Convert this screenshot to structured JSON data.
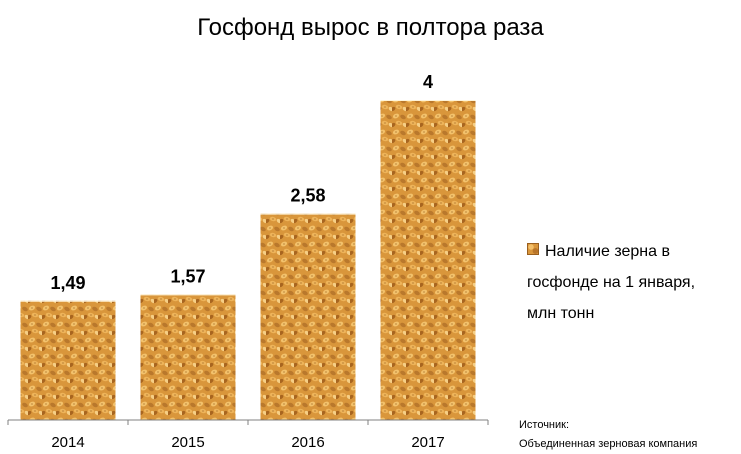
{
  "chart_data": {
    "type": "bar",
    "title": "Госфонд вырос в полтора раза",
    "categories": [
      "2014",
      "2015",
      "2016",
      "2017"
    ],
    "series": [
      {
        "name": "Наличие зерна в госфонде на 1 января, млн тонн",
        "values": [
          1.49,
          1.57,
          2.58,
          4
        ]
      }
    ],
    "data_labels": [
      "1,49",
      "1,57",
      "2,58",
      "4"
    ],
    "ylim": [
      0,
      4
    ],
    "xlabel": "",
    "ylabel": "",
    "grid": false,
    "legend_placement": "right"
  },
  "legend": {
    "lines": [
      "Наличие зерна в",
      "госфонде на 1 января,",
      "млн тонн"
    ]
  },
  "source": {
    "label": "Источник:",
    "text": "Объединенная зерновая компания"
  },
  "colors": {
    "bar_base": "#d9963b",
    "grain_light": "#f3c26c",
    "grain_dark": "#a8651f",
    "axis": "#808080"
  }
}
